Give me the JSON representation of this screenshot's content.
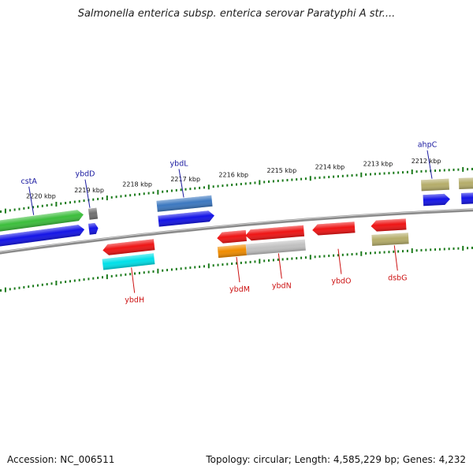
{
  "title": "Salmonella enterica subsp. enterica serovar Paratyphi A str....",
  "footer": {
    "accession": "Accession: NC_006511",
    "summary": "Topology: circular; Length: 4,585,229 bp; Genes: 4,232"
  },
  "colors": {
    "forward_label": "#1a1aa0",
    "reverse_label": "#cc1111",
    "backbone": "#8a8a8a",
    "tick": "#1a7a1a"
  },
  "kbp_ticks": [
    "2220 kbp",
    "2219 kbp",
    "2218 kbp",
    "2217 kbp",
    "2216 kbp",
    "2215 kbp",
    "2214 kbp",
    "2213 kbp",
    "2212 kbp"
  ],
  "features": [
    {
      "track": "f2",
      "start": -0.05,
      "end": 0.188,
      "color": "#3cbe3c",
      "dir": 1
    },
    {
      "track": "f1",
      "start": -0.05,
      "end": 0.19,
      "color": "#1414e6",
      "dir": 1
    },
    {
      "track": "f2",
      "start": 0.198,
      "end": 0.215,
      "color": "#707070",
      "dir": 0
    },
    {
      "track": "f1",
      "start": 0.198,
      "end": 0.217,
      "color": "#1414e6",
      "dir": 1
    },
    {
      "track": "f2",
      "start": 0.337,
      "end": 0.45,
      "color": "#3c78c0",
      "dir": 0
    },
    {
      "track": "f1",
      "start": 0.34,
      "end": 0.455,
      "color": "#1414e6",
      "dir": 1
    },
    {
      "track": "r1",
      "start": 0.226,
      "end": 0.332,
      "color": "#ee1515",
      "dir": -1
    },
    {
      "track": "r2",
      "start": 0.226,
      "end": 0.332,
      "color": "#00e0e8",
      "dir": 0
    },
    {
      "track": "r1",
      "start": 0.46,
      "end": 0.52,
      "color": "#ee1515",
      "dir": -1
    },
    {
      "track": "r2",
      "start": 0.462,
      "end": 0.52,
      "color": "#f08c00",
      "dir": 0
    },
    {
      "track": "r1",
      "start": 0.518,
      "end": 0.638,
      "color": "#ee1515",
      "dir": -1
    },
    {
      "track": "r2",
      "start": 0.52,
      "end": 0.641,
      "color": "#c0c0c0",
      "dir": 0
    },
    {
      "track": "r1",
      "start": 0.655,
      "end": 0.742,
      "color": "#ee1515",
      "dir": -1
    },
    {
      "track": "r1",
      "start": 0.775,
      "end": 0.847,
      "color": "#ee1515",
      "dir": -1
    },
    {
      "track": "r2",
      "start": 0.777,
      "end": 0.852,
      "color": "#b5ad6a",
      "dir": 0
    },
    {
      "track": "f2",
      "start": 0.878,
      "end": 0.935,
      "color": "#b5ad6a",
      "dir": 0
    },
    {
      "track": "f1",
      "start": 0.882,
      "end": 0.937,
      "color": "#1414e6",
      "dir": 1
    },
    {
      "track": "f2",
      "start": 0.955,
      "end": 1.05,
      "color": "#b5ad6a",
      "dir": 0
    },
    {
      "track": "f1",
      "start": 0.96,
      "end": 1.05,
      "color": "#1414e6",
      "dir": 1
    }
  ],
  "gene_labels": [
    {
      "name": "cstA",
      "strand": "forward",
      "t": 0.085
    },
    {
      "name": "ybdD",
      "strand": "forward",
      "t": 0.2
    },
    {
      "name": "ybdL",
      "strand": "forward",
      "t": 0.392
    },
    {
      "name": "ahpC",
      "strand": "forward",
      "t": 0.9
    },
    {
      "name": "ybdH",
      "strand": "reverse",
      "t": 0.285
    },
    {
      "name": "ybdM",
      "strand": "reverse",
      "t": 0.5
    },
    {
      "name": "ybdN",
      "strand": "reverse",
      "t": 0.586
    },
    {
      "name": "ybdO",
      "strand": "reverse",
      "t": 0.708
    },
    {
      "name": "dsbG",
      "strand": "reverse",
      "t": 0.823
    }
  ]
}
